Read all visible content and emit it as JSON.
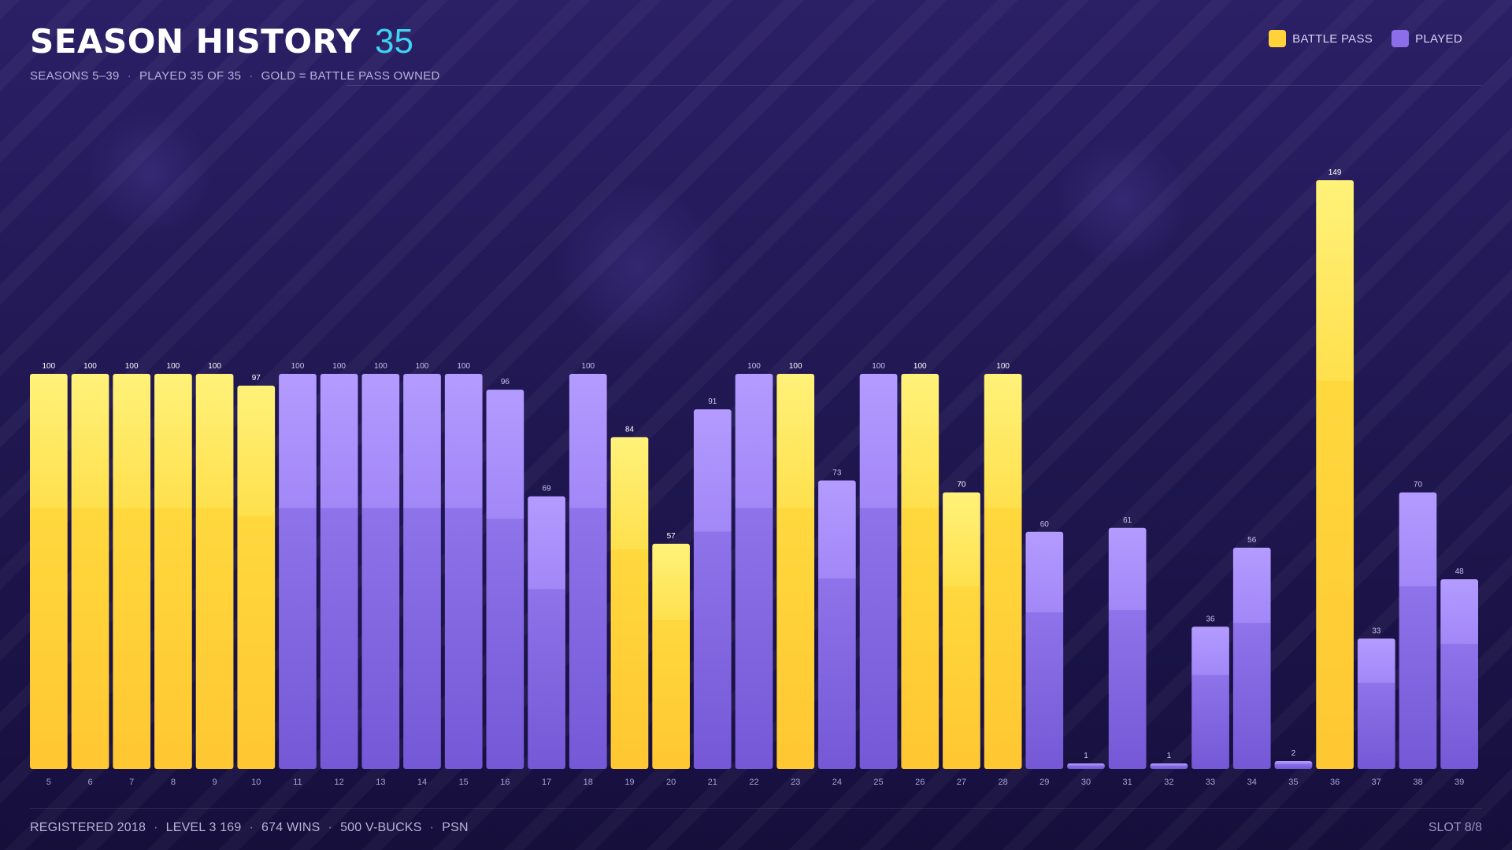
{
  "header": {
    "title": "SEASON HISTORY",
    "count": "35",
    "subtitle": [
      "SEASONS 5–39",
      "PLAYED 35 OF 35",
      "GOLD = BATTLE PASS OWNED"
    ]
  },
  "legend": [
    {
      "label": "BATTLE PASS",
      "color": "#ffd23a"
    },
    {
      "label": "PLAYED",
      "color": "#8b6ee8"
    }
  ],
  "footer": {
    "items": [
      "REGISTERED 2018",
      "LEVEL 3 169",
      "674 WINS",
      "500 V-BUCKS",
      "PSN"
    ],
    "slot": "SLOT 8/8"
  },
  "colors": {
    "background": "#211853",
    "accent": "#3fd3f2",
    "battle_pass": "#ffd23a",
    "played": "#8b6ee8"
  },
  "chart_data": {
    "type": "bar",
    "categories": [
      "5",
      "6",
      "7",
      "8",
      "9",
      "10",
      "11",
      "12",
      "13",
      "14",
      "15",
      "16",
      "17",
      "18",
      "19",
      "20",
      "21",
      "22",
      "23",
      "24",
      "25",
      "26",
      "27",
      "28",
      "29",
      "30",
      "31",
      "32",
      "33",
      "34",
      "35",
      "36",
      "37",
      "38",
      "39"
    ],
    "values": [
      100,
      100,
      100,
      100,
      100,
      97,
      100,
      100,
      100,
      100,
      100,
      96,
      69,
      100,
      84,
      57,
      91,
      100,
      100,
      73,
      100,
      100,
      70,
      100,
      60,
      1,
      61,
      1,
      36,
      56,
      2,
      149,
      33,
      70,
      48
    ],
    "battle_pass": [
      true,
      true,
      true,
      true,
      true,
      true,
      false,
      false,
      false,
      false,
      false,
      false,
      false,
      false,
      true,
      true,
      false,
      false,
      true,
      false,
      false,
      true,
      true,
      true,
      false,
      false,
      false,
      false,
      false,
      false,
      false,
      true,
      false,
      false,
      false
    ],
    "ylim": [
      0,
      150
    ],
    "grid": false,
    "legend_position": "top-right"
  }
}
